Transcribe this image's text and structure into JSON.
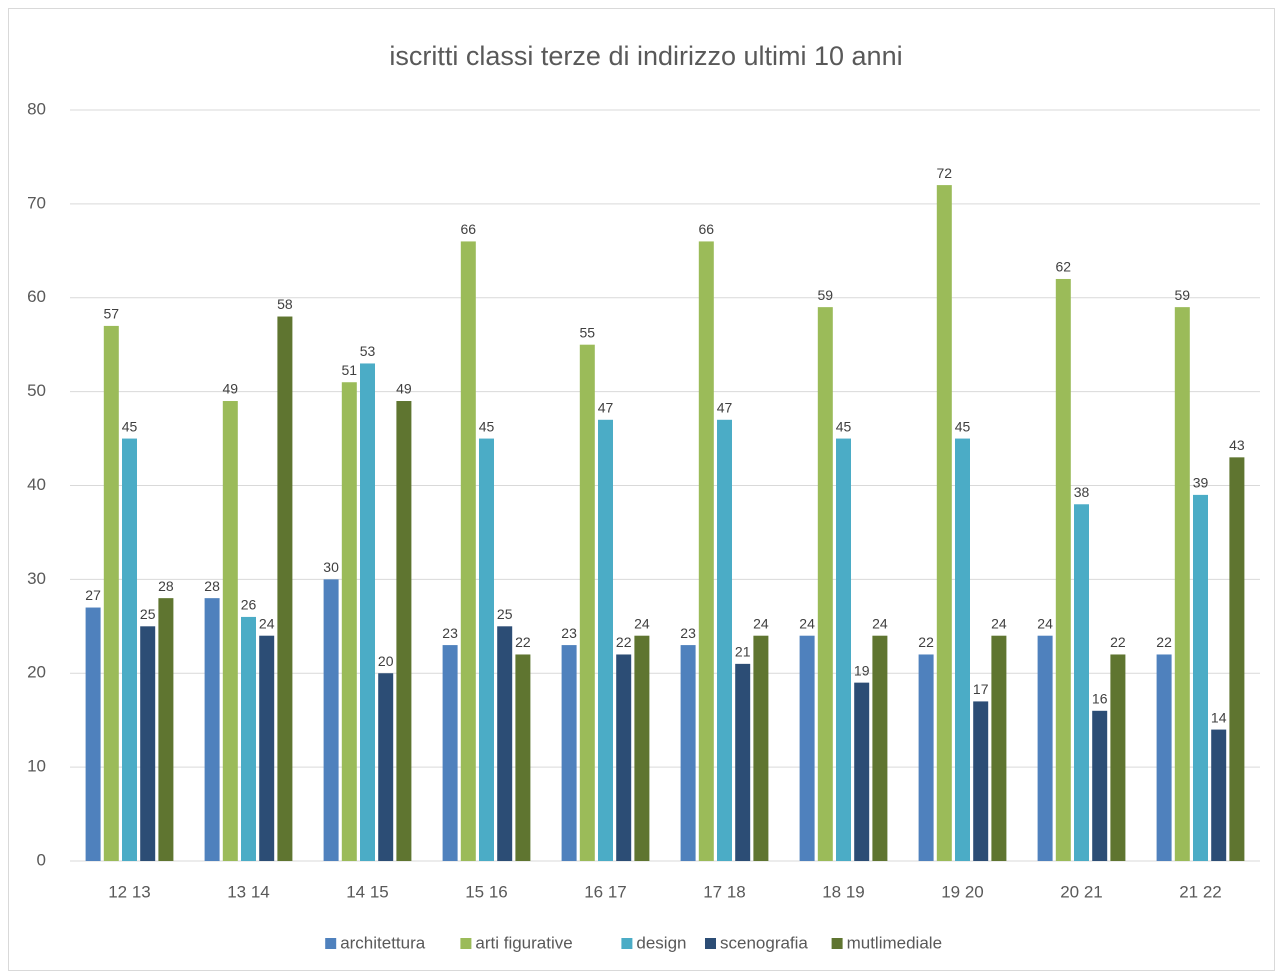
{
  "chart_data": {
    "type": "bar",
    "title": "iscritti classi terze di indirizzo ultimi 10 anni",
    "categories": [
      "12 13",
      "13 14",
      "14 15",
      "15 16",
      "16 17",
      "17 18",
      "18 19",
      "19 20",
      "20 21",
      "21 22"
    ],
    "series": [
      {
        "name": "architettura",
        "color": "#4f81bd",
        "values": [
          27,
          28,
          30,
          23,
          23,
          23,
          24,
          22,
          24,
          22
        ]
      },
      {
        "name": "arti figurative",
        "color": "#9bbb59",
        "values": [
          57,
          49,
          51,
          66,
          55,
          66,
          59,
          72,
          62,
          59
        ]
      },
      {
        "name": "design",
        "color": "#4bacc6",
        "values": [
          45,
          26,
          53,
          45,
          47,
          47,
          45,
          45,
          38,
          39
        ]
      },
      {
        "name": "scenografia",
        "color": "#2c4d75",
        "values": [
          25,
          24,
          20,
          25,
          22,
          21,
          19,
          17,
          16,
          14
        ]
      },
      {
        "name": "mutlimediale",
        "color": "#5f7530",
        "values": [
          28,
          58,
          49,
          22,
          24,
          24,
          24,
          24,
          22,
          43
        ]
      }
    ],
    "ylim": [
      0,
      80
    ],
    "yticks": [
      0,
      10,
      20,
      30,
      40,
      50,
      60,
      70,
      80
    ],
    "grid": true,
    "legend": "bottom"
  }
}
